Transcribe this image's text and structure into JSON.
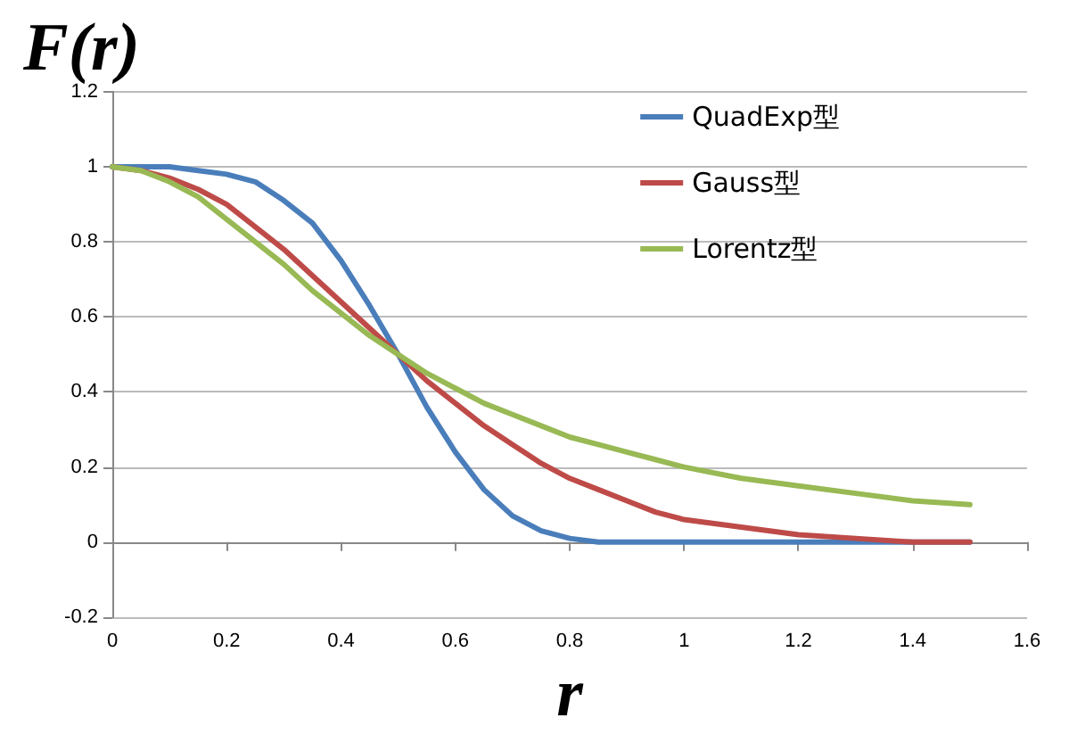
{
  "chart_data": {
    "type": "line",
    "xlabel": "r",
    "ylabel": "F(r)",
    "x": [
      0,
      0.05,
      0.1,
      0.15,
      0.2,
      0.25,
      0.3,
      0.35,
      0.4,
      0.45,
      0.5,
      0.55,
      0.6,
      0.65,
      0.7,
      0.75,
      0.8,
      0.85,
      0.9,
      0.95,
      1,
      1.1,
      1.2,
      1.3,
      1.4,
      1.5
    ],
    "series": [
      {
        "name": "QuadExp型",
        "color": "#4a7ebb",
        "values": [
          1,
          1,
          1,
          0.99,
          0.98,
          0.96,
          0.91,
          0.85,
          0.75,
          0.63,
          0.5,
          0.36,
          0.24,
          0.14,
          0.07,
          0.03,
          0.01,
          0,
          0,
          0,
          0,
          0,
          0,
          0,
          0,
          0
        ]
      },
      {
        "name": "Gauss型",
        "color": "#be4b48",
        "values": [
          1,
          0.99,
          0.97,
          0.94,
          0.9,
          0.84,
          0.78,
          0.71,
          0.64,
          0.57,
          0.5,
          0.43,
          0.37,
          0.31,
          0.26,
          0.21,
          0.17,
          0.14,
          0.11,
          0.08,
          0.06,
          0.04,
          0.02,
          0.01,
          0,
          0
        ]
      },
      {
        "name": "Lorentz型",
        "color": "#98b954",
        "values": [
          1,
          0.99,
          0.96,
          0.92,
          0.86,
          0.8,
          0.74,
          0.67,
          0.61,
          0.55,
          0.5,
          0.45,
          0.41,
          0.37,
          0.34,
          0.31,
          0.28,
          0.26,
          0.24,
          0.22,
          0.2,
          0.17,
          0.15,
          0.13,
          0.11,
          0.1
        ]
      }
    ],
    "xlim": [
      0,
      1.6
    ],
    "xticks": [
      0,
      0.2,
      0.4,
      0.6,
      0.8,
      1,
      1.2,
      1.4,
      1.6
    ],
    "ylim": [
      -0.2,
      1.2
    ],
    "yticks": [
      -0.2,
      0,
      0.2,
      0.4,
      0.6,
      0.8,
      1,
      1.2
    ],
    "grid": "y",
    "legend": "top right",
    "marker": "none",
    "line_style": "solid"
  }
}
